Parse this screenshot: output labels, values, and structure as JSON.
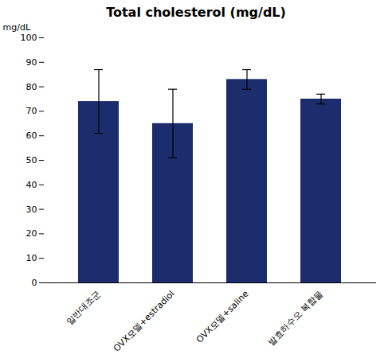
{
  "chart_data": {
    "type": "bar",
    "title": "Total cholesterol (mg/dL)",
    "ylabel": "mg/dL",
    "categories": [
      "일반대조군",
      "OVX모델+estradiol",
      "OVX모델+saline",
      "발효하수오 복합물"
    ],
    "values": [
      74,
      65,
      83,
      75
    ],
    "errors": [
      13,
      14,
      4,
      2
    ],
    "color": "#1c2d6e",
    "ylim": [
      0,
      100
    ],
    "yticks": [
      0,
      10,
      20,
      30,
      40,
      50,
      60,
      70,
      80,
      90,
      100
    ],
    "grid": false
  }
}
